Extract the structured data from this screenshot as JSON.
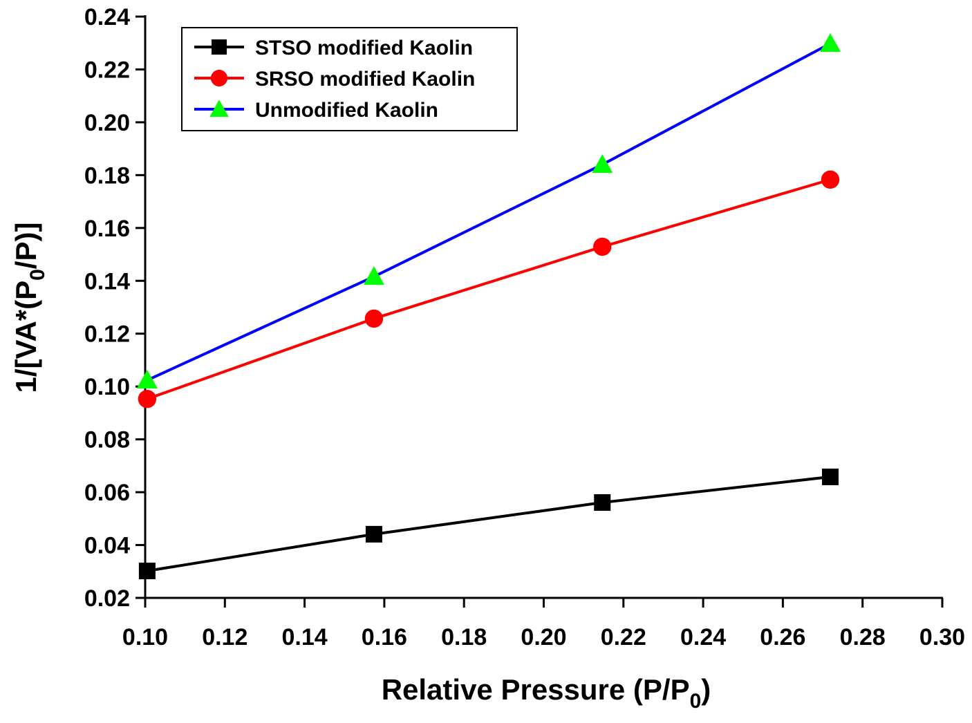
{
  "chart_data": {
    "type": "line",
    "xlabel": [
      "Relative Pressure (P/P",
      "0",
      ")"
    ],
    "ylabel": [
      "1/[VA*(P",
      "0",
      "/P)]"
    ],
    "xlim": [
      0.1,
      0.3
    ],
    "xticks": [
      {
        "value": 0.1,
        "label": "0.10"
      },
      {
        "value": 0.12,
        "label": "0.12"
      },
      {
        "value": 0.14,
        "label": "0.14"
      },
      {
        "value": 0.16,
        "label": "0.16"
      },
      {
        "value": 0.18,
        "label": "0.18"
      },
      {
        "value": 0.2,
        "label": "0.20"
      },
      {
        "value": 0.22,
        "label": "0.22"
      },
      {
        "value": 0.24,
        "label": "0.24"
      },
      {
        "value": 0.26,
        "label": "0.26"
      },
      {
        "value": 0.28,
        "label": "0.28"
      },
      {
        "value": 0.3,
        "label": "0.30"
      }
    ],
    "ylim": [
      0.02,
      0.24
    ],
    "yticks": [
      0.02,
      0.04,
      0.06,
      0.08,
      {
        "value": 0.1,
        "label": "0.10"
      },
      0.12,
      0.14,
      0.16,
      0.18,
      {
        "value": 0.2,
        "label": "0.20"
      },
      0.22,
      0.24
    ],
    "legend": "top-left",
    "series": [
      {
        "name": "STSO modified Kaolin",
        "color": "#000000",
        "marker": "square",
        "marker_color": "#000000",
        "x": [
          0.1005,
          0.1574,
          0.2147,
          0.2719
        ],
        "values": [
          0.0302,
          0.0441,
          0.0561,
          0.0658
        ]
      },
      {
        "name": "SRSO modified Kaolin",
        "color": "#ff0000",
        "marker": "circle",
        "marker_color": "#ff0000",
        "x": [
          0.1005,
          0.1574,
          0.2147,
          0.2719
        ],
        "values": [
          0.0953,
          0.1257,
          0.1529,
          0.1783
        ]
      },
      {
        "name": "Unmodified Kaolin",
        "color": "#0000ff",
        "marker": "triangle",
        "marker_color": "#00ff00",
        "x": [
          0.1005,
          0.1574,
          0.2147,
          0.2719
        ],
        "values": [
          0.1024,
          0.1416,
          0.184,
          0.2298
        ]
      }
    ]
  }
}
